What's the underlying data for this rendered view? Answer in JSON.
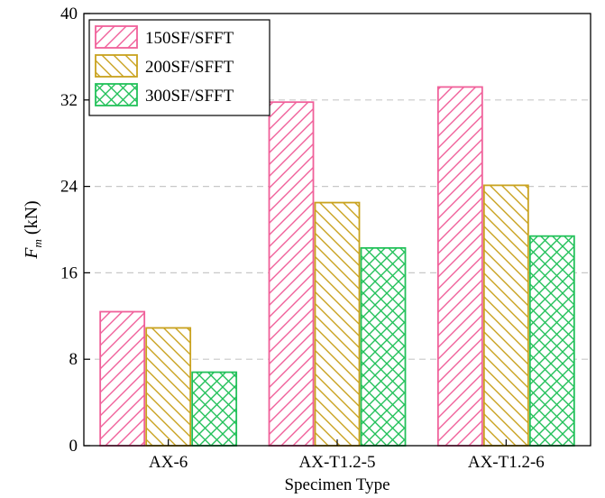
{
  "chart_data": {
    "type": "bar",
    "categories": [
      "AX-6",
      "AX-T1.2-5",
      "AX-T1.2-6"
    ],
    "series": [
      {
        "name": "150SF/SFFT",
        "values": [
          12.4,
          31.8,
          33.2
        ],
        "color": "#f0609a",
        "pattern": "hatch-diagonal-forward"
      },
      {
        "name": "200SF/SFFT",
        "values": [
          10.9,
          22.5,
          24.1
        ],
        "color": "#c9a21e",
        "pattern": "hatch-diagonal-back"
      },
      {
        "name": "300SF/SFFT",
        "values": [
          6.8,
          18.3,
          19.4
        ],
        "color": "#23c15a",
        "pattern": "hatch-cross"
      }
    ],
    "xlabel": "Specimen Type",
    "ylabel_main": "F",
    "ylabel_sub": "m",
    "ylabel_unit": " (kN)",
    "ylim": [
      0,
      40
    ],
    "yticks": [
      0,
      8,
      16,
      24,
      32,
      40
    ],
    "grid": "horizontal dashed",
    "legend_position": "top-left"
  }
}
